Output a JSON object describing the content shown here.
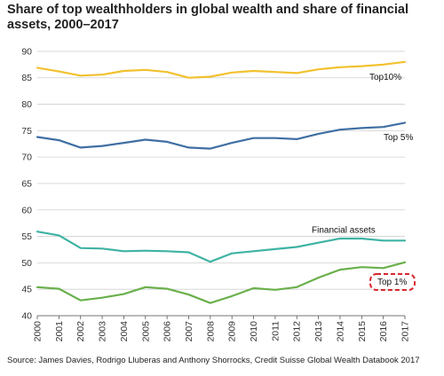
{
  "chart_data": {
    "type": "line",
    "title": "Share of top wealthholders in global wealth and share of financial assets, 2000–2017",
    "xlabel": "",
    "ylabel": "",
    "source": "Source: James Davies, Rodrigo Lluberas and Anthony Shorrocks, Credit Suisse Global Wealth Databook 2017",
    "x": [
      "2000",
      "2001",
      "2002",
      "2003",
      "2004",
      "2005",
      "2006",
      "2007",
      "2008",
      "2009",
      "2010",
      "2011",
      "2012",
      "2013",
      "2014",
      "2015",
      "2016",
      "2017"
    ],
    "yticks": [
      40,
      45,
      50,
      55,
      60,
      65,
      70,
      75,
      80,
      85,
      90
    ],
    "ylim": [
      40,
      92
    ],
    "grid": "horizontal",
    "series": [
      {
        "name": "Top10%",
        "color": "#f2c12e",
        "values": [
          86.9,
          86.2,
          85.4,
          85.6,
          86.3,
          86.5,
          86.1,
          85.0,
          85.2,
          86.0,
          86.3,
          86.1,
          85.9,
          86.6,
          87.0,
          87.2,
          87.5,
          88.0
        ]
      },
      {
        "name": "Top 5%",
        "color": "#3f6fa3",
        "values": [
          73.8,
          73.2,
          71.8,
          72.1,
          72.7,
          73.3,
          72.9,
          71.8,
          71.6,
          72.7,
          73.6,
          73.6,
          73.4,
          74.4,
          75.2,
          75.5,
          75.7,
          76.5
        ]
      },
      {
        "name": "Financial assets",
        "color": "#3fb3a4",
        "values": [
          55.9,
          55.2,
          52.8,
          52.7,
          52.2,
          52.3,
          52.2,
          52.0,
          50.2,
          51.8,
          52.2,
          52.6,
          53.0,
          53.8,
          54.6,
          54.6,
          54.2,
          54.2
        ]
      },
      {
        "name": "Top 1%",
        "color": "#6ab04c",
        "values": [
          45.4,
          45.1,
          42.9,
          43.4,
          44.1,
          45.4,
          45.1,
          44.0,
          42.4,
          43.7,
          45.2,
          44.9,
          45.4,
          47.2,
          48.7,
          49.2,
          49.0,
          50.1
        ]
      }
    ],
    "highlight": {
      "series": "Top 1%",
      "style": "red dashed rounded box",
      "color": "#d9262c"
    }
  }
}
